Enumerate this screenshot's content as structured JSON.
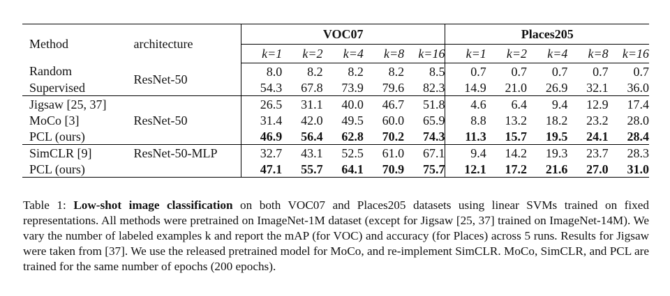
{
  "table": {
    "headers": {
      "method": "Method",
      "architecture": "architecture",
      "voc_title": "VOC07",
      "places_title": "Places205",
      "k_labels": [
        "k=1",
        "k=2",
        "k=4",
        "k=8",
        "k=16"
      ]
    },
    "rows": [
      {
        "method": "Random",
        "architecture": "",
        "voc": [
          "8.0",
          "8.2",
          "8.2",
          "8.2",
          "8.5"
        ],
        "places": [
          "0.7",
          "0.7",
          "0.7",
          "0.7",
          "0.7"
        ],
        "bold": false
      },
      {
        "method": "Supervised",
        "architecture": "",
        "voc": [
          "54.3",
          "67.8",
          "73.9",
          "79.6",
          "82.3"
        ],
        "places": [
          "14.9",
          "21.0",
          "26.9",
          "32.1",
          "36.0"
        ],
        "bold": false
      },
      {
        "method": "Jigsaw [25, 37]",
        "architecture": "",
        "voc": [
          "26.5",
          "31.1",
          "40.0",
          "46.7",
          "51.8"
        ],
        "places": [
          "4.6",
          "6.4",
          "9.4",
          "12.9",
          "17.4"
        ],
        "bold": false
      },
      {
        "method": "MoCo [3]",
        "architecture": "",
        "voc": [
          "31.4",
          "42.0",
          "49.5",
          "60.0",
          "65.9"
        ],
        "places": [
          "8.8",
          "13.2",
          "18.2",
          "23.2",
          "28.0"
        ],
        "bold": false
      },
      {
        "method": "PCL (ours)",
        "architecture": "",
        "voc": [
          "46.9",
          "56.4",
          "62.8",
          "70.2",
          "74.3"
        ],
        "places": [
          "11.3",
          "15.7",
          "19.5",
          "24.1",
          "28.4"
        ],
        "bold": true
      },
      {
        "method": "SimCLR [9]",
        "architecture": "ResNet-50-MLP",
        "voc": [
          "32.7",
          "43.1",
          "52.5",
          "61.0",
          "67.1"
        ],
        "places": [
          "9.4",
          "14.2",
          "19.3",
          "23.7",
          "28.3"
        ],
        "bold": false
      },
      {
        "method": "PCL (ours)",
        "architecture": "",
        "voc": [
          "47.1",
          "55.7",
          "64.1",
          "70.9",
          "75.7"
        ],
        "places": [
          "12.1",
          "17.2",
          "21.6",
          "27.0",
          "31.0"
        ],
        "bold": true
      }
    ],
    "group_architectures": [
      "ResNet-50",
      "ResNet-50"
    ]
  },
  "caption": {
    "label": "Table 1: ",
    "title": "Low-shot image classification",
    "text": " on both VOC07 and Places205 datasets using linear SVMs trained on fixed representations. All methods were pretrained on ImageNet-1M dataset (except for Jigsaw [25, 37] trained on ImageNet-14M). We vary the number of labeled examples k and report the mAP (for VOC) and accuracy (for Places) across 5 runs. Results for Jigsaw were taken from [37]. We use the released pretrained model for MoCo, and re-implement SimCLR. MoCo, SimCLR, and PCL are trained for the same number of epochs (200 epochs)."
  }
}
